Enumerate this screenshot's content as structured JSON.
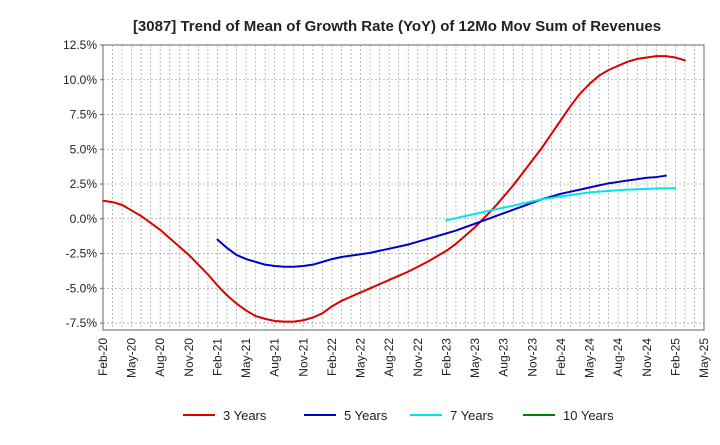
{
  "chart_data": {
    "type": "line",
    "title": "[3087]  Trend of Mean of Growth Rate (YoY) of 12Mo Mov Sum of Revenues",
    "xlabel": "",
    "ylabel": "",
    "ylim": [
      -8.0,
      12.5
    ],
    "yticks": [
      12.5,
      10.0,
      7.5,
      5.0,
      2.5,
      0.0,
      -2.5,
      -5.0,
      -7.5
    ],
    "ytick_labels": [
      "12.5%",
      "10.0%",
      "7.5%",
      "5.0%",
      "2.5%",
      "0.0%",
      "-2.5%",
      "-5.0%",
      "-7.5%"
    ],
    "xtick_labels": [
      "Feb-20",
      "May-20",
      "Aug-20",
      "Nov-20",
      "Feb-21",
      "May-21",
      "Aug-21",
      "Nov-21",
      "Feb-22",
      "May-22",
      "Aug-22",
      "Nov-22",
      "Feb-23",
      "May-23",
      "Aug-23",
      "Nov-23",
      "Feb-24",
      "May-24",
      "Aug-24",
      "Nov-24",
      "Feb-25",
      "May-25"
    ],
    "x_start": "Feb-20",
    "x_months": 63,
    "grid": true,
    "legend_position": "bottom",
    "series": [
      {
        "name": "3 Years",
        "color": "#dd0000",
        "start_month": 0,
        "values": [
          1.3,
          1.2,
          1.0,
          0.6,
          0.2,
          -0.3,
          -0.8,
          -1.4,
          -2.0,
          -2.6,
          -3.3,
          -4.0,
          -4.8,
          -5.5,
          -6.1,
          -6.6,
          -7.0,
          -7.2,
          -7.35,
          -7.4,
          -7.4,
          -7.3,
          -7.1,
          -6.8,
          -6.3,
          -5.9,
          -5.6,
          -5.3,
          -5.0,
          -4.7,
          -4.4,
          -4.1,
          -3.8,
          -3.45,
          -3.1,
          -2.7,
          -2.3,
          -1.8,
          -1.2,
          -0.6,
          0.1,
          0.8,
          1.6,
          2.4,
          3.3,
          4.2,
          5.1,
          6.1,
          7.1,
          8.1,
          9.0,
          9.7,
          10.3,
          10.7,
          11.0,
          11.3,
          11.5,
          11.6,
          11.7,
          11.7,
          11.6,
          11.4
        ]
      },
      {
        "name": "5 Years",
        "color": "#0000cc",
        "start_month": 12,
        "values": [
          -1.5,
          -2.1,
          -2.6,
          -2.9,
          -3.1,
          -3.3,
          -3.4,
          -3.45,
          -3.45,
          -3.4,
          -3.3,
          -3.1,
          -2.9,
          -2.75,
          -2.65,
          -2.55,
          -2.45,
          -2.3,
          -2.15,
          -2.0,
          -1.85,
          -1.65,
          -1.45,
          -1.25,
          -1.05,
          -0.85,
          -0.6,
          -0.35,
          -0.1,
          0.15,
          0.4,
          0.65,
          0.9,
          1.15,
          1.4,
          1.6,
          1.8,
          1.95,
          2.1,
          2.25,
          2.4,
          2.55,
          2.65,
          2.75,
          2.85,
          2.95,
          3.0,
          3.1
        ]
      },
      {
        "name": "7 Years",
        "color": "#00e5e5",
        "start_month": 36,
        "values": [
          -0.1,
          0.05,
          0.2,
          0.35,
          0.5,
          0.65,
          0.8,
          0.95,
          1.1,
          1.25,
          1.4,
          1.5,
          1.6,
          1.7,
          1.8,
          1.9,
          1.95,
          2.0,
          2.05,
          2.1,
          2.12,
          2.15,
          2.18,
          2.2,
          2.2
        ]
      },
      {
        "name": "10 Years",
        "color": "#008000",
        "start_month": 0,
        "values": []
      }
    ]
  }
}
